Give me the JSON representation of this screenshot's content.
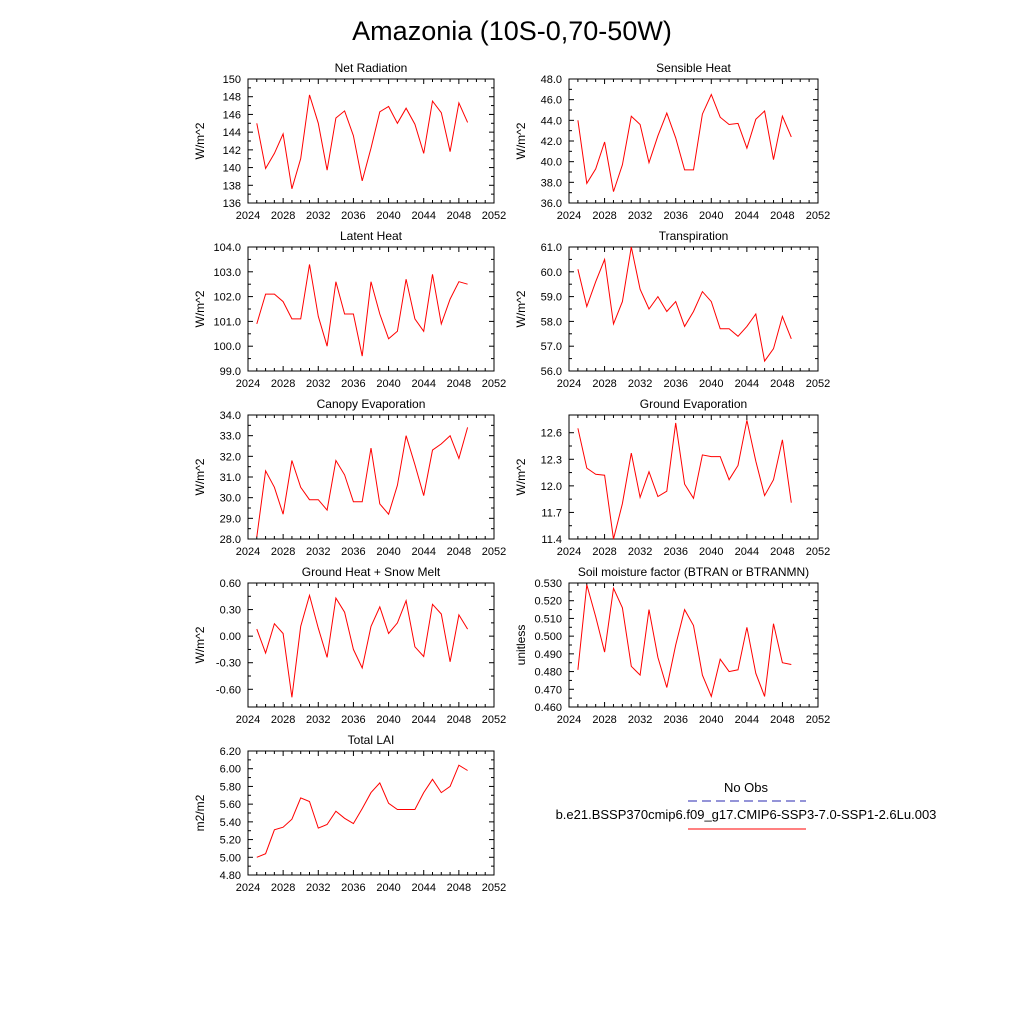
{
  "title": "Amazonia (10S-0,70-50W)",
  "legend": {
    "obs_label": "No Obs",
    "obs_color": "#2a2ab0",
    "case_label": "b.e21.BSSP370cmip6.f09_g17.CMIP6-SSP3-7.0-SSP1-2.6Lu.003",
    "case_color": "#ff0000"
  },
  "chart_data": [
    {
      "type": "line",
      "title": "Net Radiation",
      "ylabel": "W/m^2",
      "xlim": [
        2024,
        2052
      ],
      "xticks": [
        2024,
        2028,
        2032,
        2036,
        2040,
        2044,
        2048,
        2052
      ],
      "ylim": [
        136,
        150
      ],
      "yticks": [
        "136",
        "138",
        "140",
        "142",
        "144",
        "146",
        "148",
        "150"
      ],
      "series": [
        {
          "color": "#ff0000",
          "x": [
            2025,
            2026,
            2027,
            2028,
            2029,
            2030,
            2031,
            2032,
            2033,
            2034,
            2035,
            2036,
            2037,
            2038,
            2039,
            2040,
            2041,
            2042,
            2043,
            2044,
            2045,
            2046,
            2047,
            2048,
            2049
          ],
          "values": [
            145.0,
            139.9,
            141.6,
            143.8,
            137.6,
            141.0,
            148.2,
            145.0,
            139.7,
            145.6,
            146.4,
            143.6,
            138.5,
            142.2,
            146.3,
            146.9,
            145.0,
            146.7,
            144.9,
            141.6,
            147.5,
            146.2,
            141.8,
            147.3,
            145.1
          ]
        }
      ]
    },
    {
      "type": "line",
      "title": "Sensible Heat",
      "ylabel": "W/m^2",
      "xlim": [
        2024,
        2052
      ],
      "xticks": [
        2024,
        2028,
        2032,
        2036,
        2040,
        2044,
        2048,
        2052
      ],
      "ylim": [
        36.0,
        48.0
      ],
      "yticks": [
        "36.0",
        "38.0",
        "40.0",
        "42.0",
        "44.0",
        "46.0",
        "48.0"
      ],
      "series": [
        {
          "color": "#ff0000",
          "x": [
            2025,
            2026,
            2027,
            2028,
            2029,
            2030,
            2031,
            2032,
            2033,
            2034,
            2035,
            2036,
            2037,
            2038,
            2039,
            2040,
            2041,
            2042,
            2043,
            2044,
            2045,
            2046,
            2047,
            2048,
            2049
          ],
          "values": [
            44.0,
            37.9,
            39.3,
            41.9,
            37.1,
            39.7,
            44.4,
            43.6,
            39.9,
            42.5,
            44.7,
            42.3,
            39.2,
            39.2,
            44.6,
            46.5,
            44.3,
            43.6,
            43.7,
            41.3,
            44.1,
            44.9,
            40.2,
            44.4,
            42.4
          ]
        }
      ]
    },
    {
      "type": "line",
      "title": "Latent Heat",
      "ylabel": "W/m^2",
      "xlim": [
        2024,
        2052
      ],
      "xticks": [
        2024,
        2028,
        2032,
        2036,
        2040,
        2044,
        2048,
        2052
      ],
      "ylim": [
        99.0,
        104.0
      ],
      "yticks": [
        "99.0",
        "100.0",
        "101.0",
        "102.0",
        "103.0",
        "104.0"
      ],
      "series": [
        {
          "color": "#ff0000",
          "x": [
            2025,
            2026,
            2027,
            2028,
            2029,
            2030,
            2031,
            2032,
            2033,
            2034,
            2035,
            2036,
            2037,
            2038,
            2039,
            2040,
            2041,
            2042,
            2043,
            2044,
            2045,
            2046,
            2047,
            2048,
            2049
          ],
          "values": [
            100.9,
            102.1,
            102.1,
            101.8,
            101.1,
            101.1,
            103.3,
            101.2,
            100.0,
            102.6,
            101.3,
            101.3,
            99.6,
            102.6,
            101.3,
            100.3,
            100.6,
            102.7,
            101.1,
            100.6,
            102.9,
            100.9,
            101.9,
            102.6,
            102.5
          ]
        }
      ]
    },
    {
      "type": "line",
      "title": "Transpiration",
      "ylabel": "W/m^2",
      "xlim": [
        2024,
        2052
      ],
      "xticks": [
        2024,
        2028,
        2032,
        2036,
        2040,
        2044,
        2048,
        2052
      ],
      "ylim": [
        56.0,
        61.0
      ],
      "yticks": [
        "56.0",
        "57.0",
        "58.0",
        "59.0",
        "60.0",
        "61.0"
      ],
      "series": [
        {
          "color": "#ff0000",
          "x": [
            2025,
            2026,
            2027,
            2028,
            2029,
            2030,
            2031,
            2032,
            2033,
            2034,
            2035,
            2036,
            2037,
            2038,
            2039,
            2040,
            2041,
            2042,
            2043,
            2044,
            2045,
            2046,
            2047,
            2048,
            2049
          ],
          "values": [
            60.1,
            58.6,
            59.6,
            60.5,
            57.9,
            58.8,
            61.0,
            59.3,
            58.5,
            59.0,
            58.4,
            58.8,
            57.8,
            58.4,
            59.2,
            58.8,
            57.7,
            57.7,
            57.4,
            57.8,
            58.3,
            56.4,
            56.9,
            58.2,
            57.3
          ]
        }
      ]
    },
    {
      "type": "line",
      "title": "Canopy Evaporation",
      "ylabel": "W/m^2",
      "xlim": [
        2024,
        2052
      ],
      "xticks": [
        2024,
        2028,
        2032,
        2036,
        2040,
        2044,
        2048,
        2052
      ],
      "ylim": [
        28.0,
        34.0
      ],
      "yticks": [
        "28.0",
        "29.0",
        "30.0",
        "31.0",
        "32.0",
        "33.0",
        "34.0"
      ],
      "series": [
        {
          "color": "#ff0000",
          "x": [
            2025,
            2026,
            2027,
            2028,
            2029,
            2030,
            2031,
            2032,
            2033,
            2034,
            2035,
            2036,
            2037,
            2038,
            2039,
            2040,
            2041,
            2042,
            2043,
            2044,
            2045,
            2046,
            2047,
            2048,
            2049
          ],
          "values": [
            28.1,
            31.3,
            30.5,
            29.2,
            31.8,
            30.5,
            29.9,
            29.9,
            29.4,
            31.8,
            31.1,
            29.8,
            29.8,
            32.4,
            29.7,
            29.2,
            30.6,
            33.0,
            31.6,
            30.1,
            32.3,
            32.6,
            33.0,
            31.9,
            33.4
          ]
        }
      ]
    },
    {
      "type": "line",
      "title": "Ground Evaporation",
      "ylabel": "W/m^2",
      "xlim": [
        2024,
        2052
      ],
      "xticks": [
        2024,
        2028,
        2032,
        2036,
        2040,
        2044,
        2048,
        2052
      ],
      "ylim": [
        11.4,
        12.8
      ],
      "yticks": [
        "11.4",
        "11.7",
        "12.0",
        "12.3",
        "12.6"
      ],
      "series": [
        {
          "color": "#ff0000",
          "x": [
            2025,
            2026,
            2027,
            2028,
            2029,
            2030,
            2031,
            2032,
            2033,
            2034,
            2035,
            2036,
            2037,
            2038,
            2039,
            2040,
            2041,
            2042,
            2043,
            2044,
            2045,
            2046,
            2047,
            2048,
            2049
          ],
          "values": [
            12.65,
            12.2,
            12.13,
            12.12,
            11.4,
            11.8,
            12.37,
            11.87,
            12.16,
            11.88,
            11.94,
            12.71,
            12.02,
            11.86,
            12.35,
            12.33,
            12.33,
            12.07,
            12.23,
            12.74,
            12.28,
            11.89,
            12.07,
            12.52,
            11.81
          ]
        }
      ]
    },
    {
      "type": "line",
      "title": "Ground Heat + Snow Melt",
      "ylabel": "W/m^2",
      "xlim": [
        2024,
        2052
      ],
      "xticks": [
        2024,
        2028,
        2032,
        2036,
        2040,
        2044,
        2048,
        2052
      ],
      "ylim": [
        -0.8,
        0.6
      ],
      "yticks": [
        "-0.60",
        "-0.30",
        "0.00",
        "0.30",
        "0.60"
      ],
      "ytick_values": [
        -0.6,
        -0.3,
        0.0,
        0.3,
        0.6
      ],
      "series": [
        {
          "color": "#ff0000",
          "x": [
            2025,
            2026,
            2027,
            2028,
            2029,
            2030,
            2031,
            2032,
            2033,
            2034,
            2035,
            2036,
            2037,
            2038,
            2039,
            2040,
            2041,
            2042,
            2043,
            2044,
            2045,
            2046,
            2047,
            2048,
            2049
          ],
          "values": [
            0.08,
            -0.19,
            0.14,
            0.03,
            -0.69,
            0.11,
            0.46,
            0.09,
            -0.24,
            0.43,
            0.27,
            -0.15,
            -0.36,
            0.11,
            0.33,
            0.03,
            0.15,
            0.4,
            -0.12,
            -0.23,
            0.36,
            0.25,
            -0.29,
            0.24,
            0.08
          ]
        }
      ]
    },
    {
      "type": "line",
      "title": "Soil moisture factor (BTRAN or BTRANMN)",
      "ylabel": "unitless",
      "xlim": [
        2024,
        2052
      ],
      "xticks": [
        2024,
        2028,
        2032,
        2036,
        2040,
        2044,
        2048,
        2052
      ],
      "ylim": [
        0.46,
        0.53
      ],
      "yticks": [
        "0.460",
        "0.470",
        "0.480",
        "0.490",
        "0.500",
        "0.510",
        "0.520",
        "0.530"
      ],
      "series": [
        {
          "color": "#ff0000",
          "x": [
            2025,
            2026,
            2027,
            2028,
            2029,
            2030,
            2031,
            2032,
            2033,
            2034,
            2035,
            2036,
            2037,
            2038,
            2039,
            2040,
            2041,
            2042,
            2043,
            2044,
            2045,
            2046,
            2047,
            2048,
            2049
          ],
          "values": [
            0.481,
            0.529,
            0.511,
            0.491,
            0.527,
            0.516,
            0.483,
            0.478,
            0.515,
            0.488,
            0.471,
            0.495,
            0.515,
            0.506,
            0.478,
            0.466,
            0.487,
            0.48,
            0.481,
            0.505,
            0.479,
            0.466,
            0.507,
            0.485,
            0.484
          ]
        }
      ]
    },
    {
      "type": "line",
      "title": "Total LAI",
      "ylabel": "m2/m2",
      "xlim": [
        2024,
        2052
      ],
      "xticks": [
        2024,
        2028,
        2032,
        2036,
        2040,
        2044,
        2048,
        2052
      ],
      "ylim": [
        4.8,
        6.2
      ],
      "yticks": [
        "4.80",
        "5.00",
        "5.20",
        "5.40",
        "5.60",
        "5.80",
        "6.00",
        "6.20"
      ],
      "series": [
        {
          "color": "#ff0000",
          "x": [
            2025,
            2026,
            2027,
            2028,
            2029,
            2030,
            2031,
            2032,
            2033,
            2034,
            2035,
            2036,
            2037,
            2038,
            2039,
            2040,
            2041,
            2042,
            2043,
            2044,
            2045,
            2046,
            2047,
            2048,
            2049
          ],
          "values": [
            5.0,
            5.04,
            5.31,
            5.34,
            5.43,
            5.67,
            5.63,
            5.33,
            5.37,
            5.52,
            5.44,
            5.38,
            5.55,
            5.73,
            5.84,
            5.61,
            5.54,
            5.54,
            5.54,
            5.73,
            5.88,
            5.73,
            5.8,
            6.04,
            5.98
          ]
        }
      ]
    }
  ]
}
